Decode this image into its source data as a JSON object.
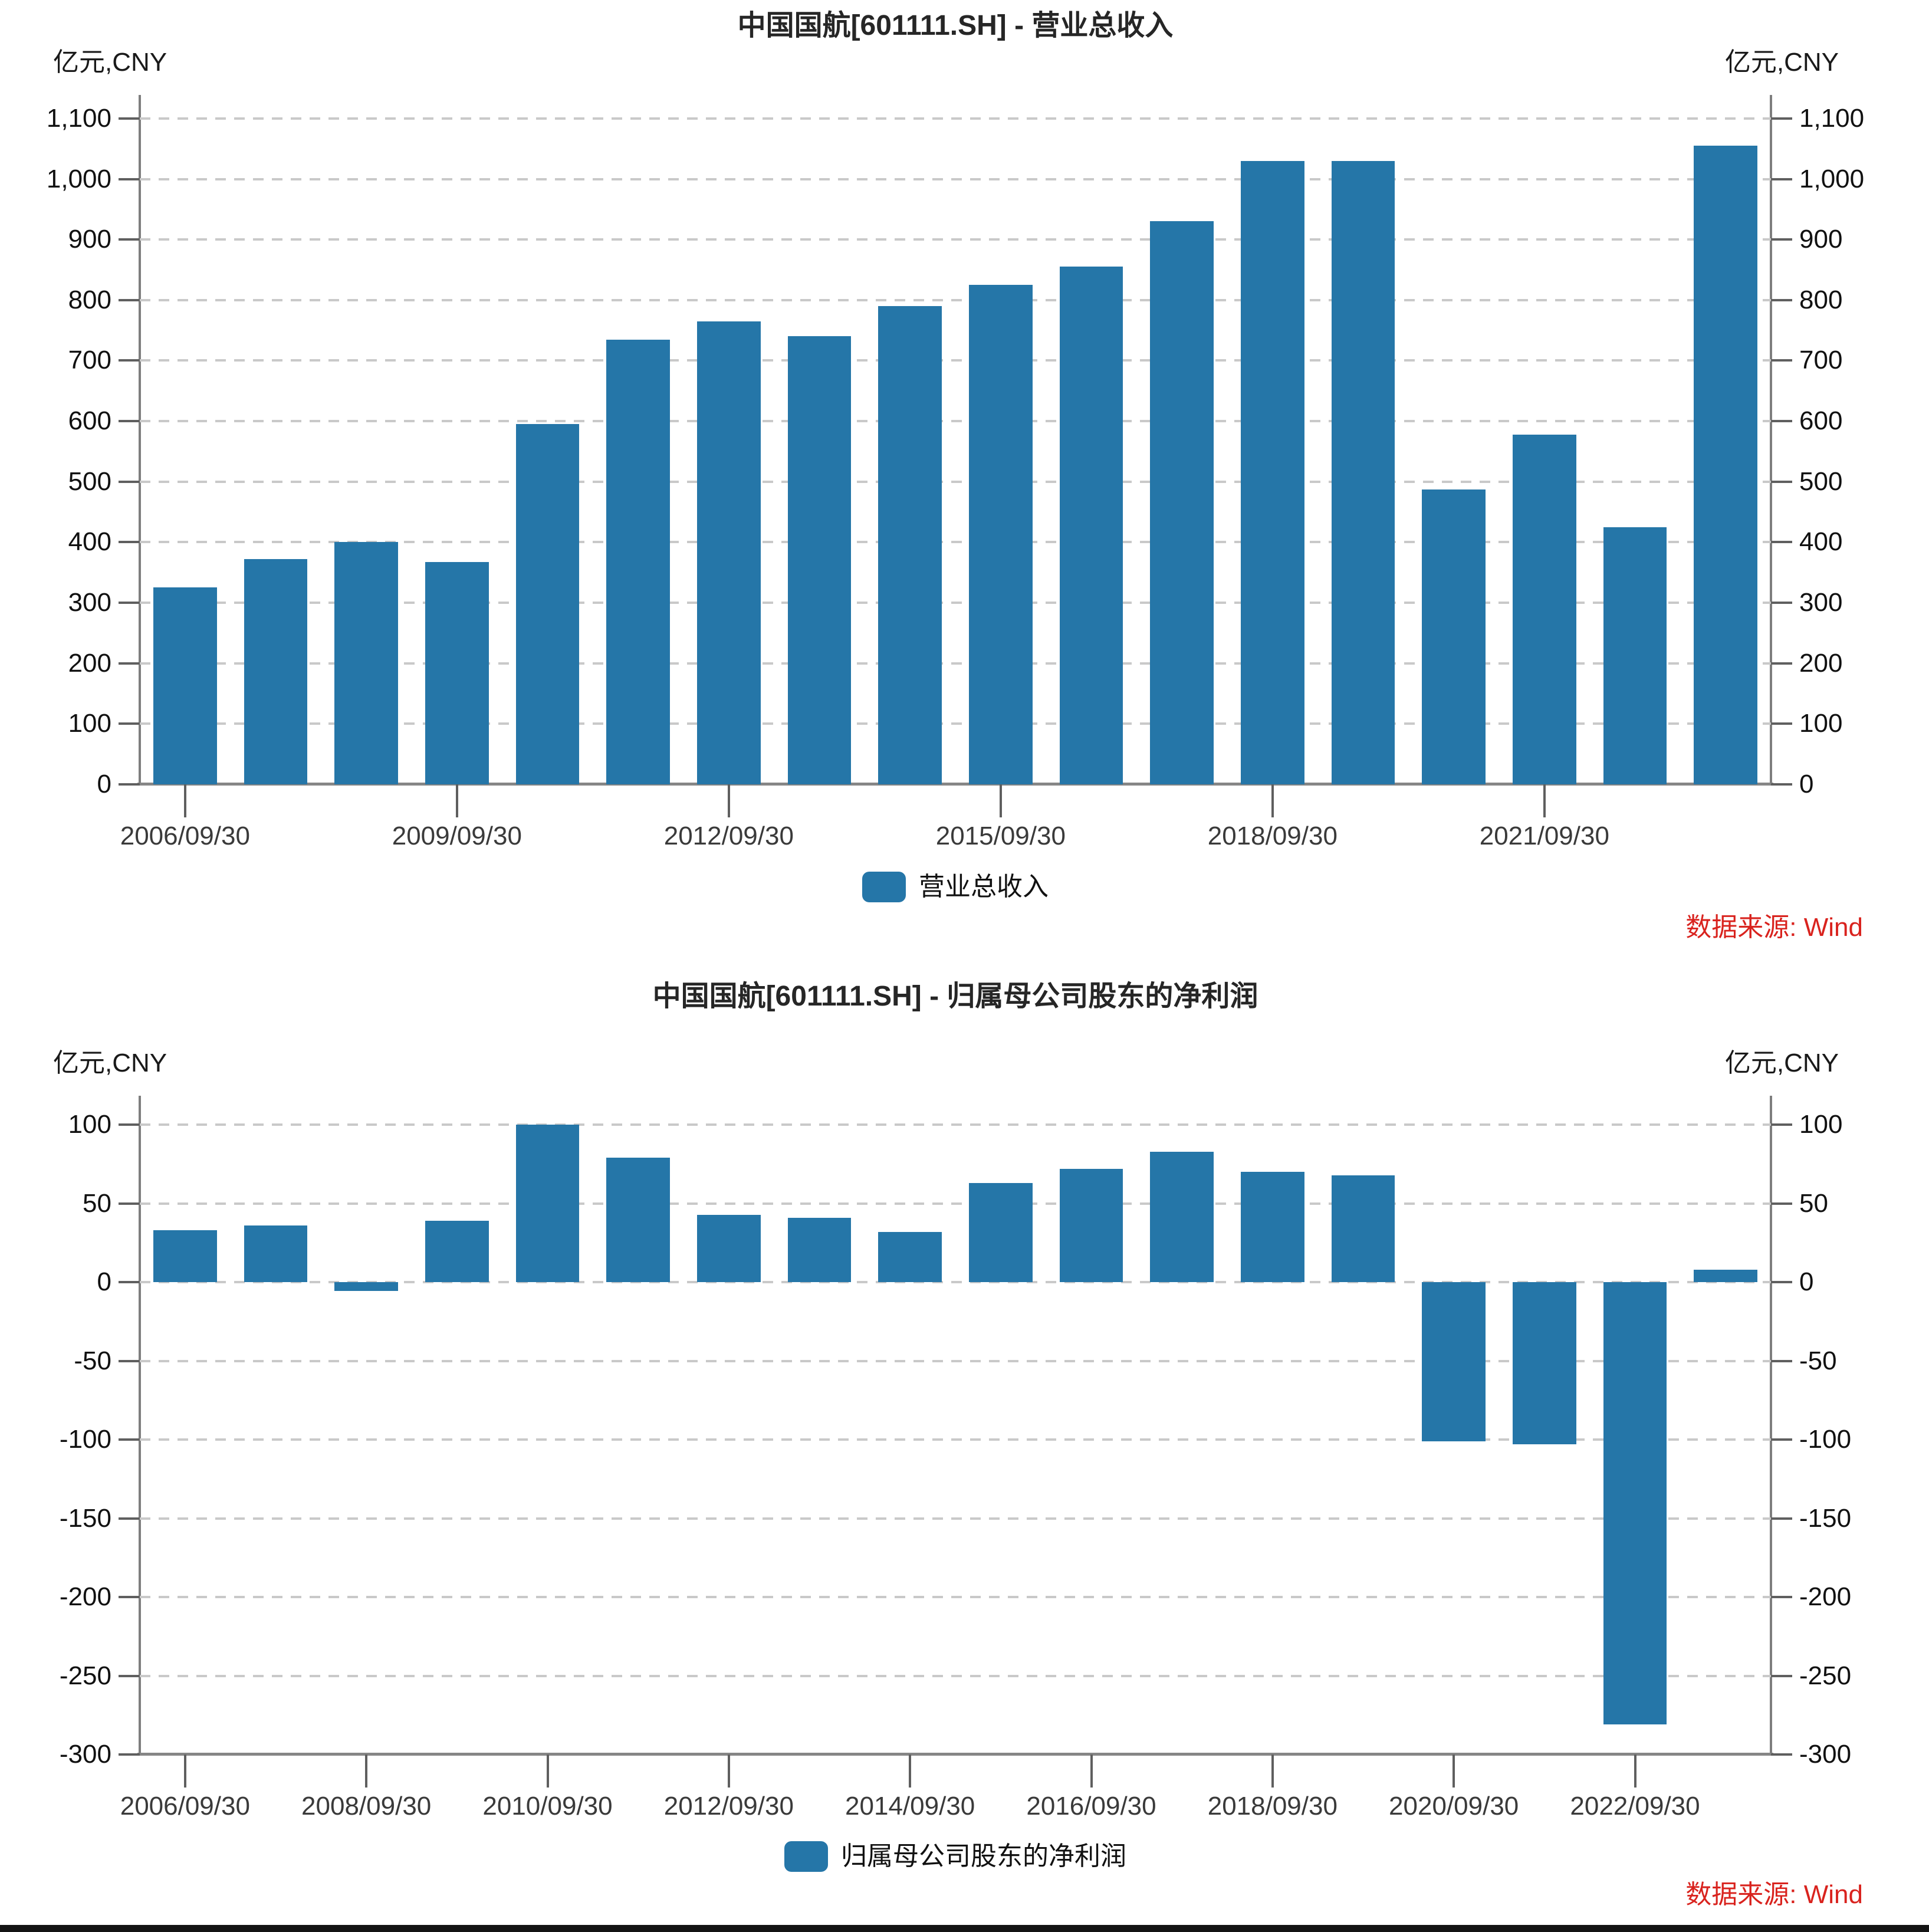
{
  "page": {
    "bar_color": "#2576A8",
    "source_color": "#D9231E",
    "grid_color": "#C9C9C9"
  },
  "chart_data": [
    {
      "type": "bar",
      "title": "中国国航[601111.SH] - 营业总收入",
      "unit_left": "亿元,CNY",
      "unit_right": "亿元,CNY",
      "legend": "营业总收入",
      "source": "数据来源: Wind",
      "bar_color": "#2576A8",
      "ylim": [
        0,
        1100
      ],
      "ytick_step": 100,
      "grid": "horizontal-dashed",
      "legend_position": "bottom-center",
      "categories": [
        "2006/09/30",
        "2007/09/30",
        "2008/09/30",
        "2009/09/30",
        "2010/09/30",
        "2011/09/30",
        "2012/09/30",
        "2013/09/30",
        "2014/09/30",
        "2015/09/30",
        "2016/09/30",
        "2017/09/30",
        "2018/09/30",
        "2019/09/30",
        "2020/09/30",
        "2021/09/30",
        "2022/09/30",
        "2023/09/30"
      ],
      "values": [
        325,
        372,
        400,
        367,
        595,
        735,
        765,
        740,
        790,
        825,
        855,
        930,
        1030,
        1030,
        487,
        578,
        425,
        1055
      ],
      "xtick_labels": [
        "2006/09/30",
        "2009/09/30",
        "2012/09/30",
        "2015/09/30",
        "2018/09/30",
        "2021/09/30"
      ],
      "xtick_indices": [
        0,
        3,
        6,
        9,
        12,
        15
      ]
    },
    {
      "type": "bar",
      "title": "中国国航[601111.SH] - 归属母公司股东的净利润",
      "unit_left": "亿元,CNY",
      "unit_right": "亿元,CNY",
      "legend": "归属母公司股东的净利润",
      "source": "数据来源: Wind",
      "bar_color": "#2576A8",
      "ylim": [
        -300,
        100
      ],
      "ytick_step": 50,
      "grid": "horizontal-dashed",
      "legend_position": "bottom-center",
      "categories": [
        "2006/09/30",
        "2007/09/30",
        "2008/09/30",
        "2009/09/30",
        "2010/09/30",
        "2011/09/30",
        "2012/09/30",
        "2013/09/30",
        "2014/09/30",
        "2015/09/30",
        "2016/09/30",
        "2017/09/30",
        "2018/09/30",
        "2019/09/30",
        "2020/09/30",
        "2021/09/30",
        "2022/09/30",
        "2023/09/30"
      ],
      "values": [
        33,
        36,
        -5.5,
        39,
        100,
        79,
        43,
        41,
        32,
        63,
        72,
        83,
        70,
        68,
        -101,
        -103,
        -281,
        8
      ],
      "xtick_labels": [
        "2006/09/30",
        "2008/09/30",
        "2010/09/30",
        "2012/09/30",
        "2014/09/30",
        "2016/09/30",
        "2018/09/30",
        "2020/09/30",
        "2022/09/30"
      ],
      "xtick_indices": [
        0,
        2,
        4,
        6,
        8,
        10,
        12,
        14,
        16
      ]
    }
  ]
}
